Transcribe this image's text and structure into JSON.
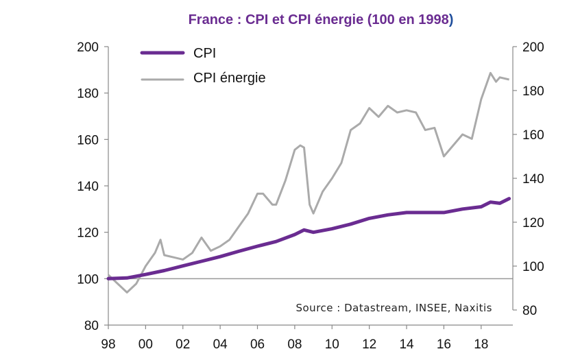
{
  "chart_data": {
    "type": "line",
    "title_main": "France : CPI et CPI énergie (100 en 1998",
    "title_paren": ")",
    "source": "Source : Datastream, INSEE, Naxitis",
    "x_tick_labels": [
      "98",
      "00",
      "02",
      "04",
      "06",
      "08",
      "10",
      "12",
      "14",
      "16",
      "18"
    ],
    "x_tick_years": [
      1998,
      2000,
      2002,
      2004,
      2006,
      2008,
      2010,
      2012,
      2014,
      2016,
      2018
    ],
    "xlim": [
      1998,
      2019.7
    ],
    "left_axis": {
      "ylim": [
        80,
        200
      ],
      "ticks": [
        80,
        100,
        120,
        140,
        160,
        180,
        200
      ]
    },
    "right_axis": {
      "ylim": [
        80,
        200
      ],
      "ticks": [
        80,
        100,
        120,
        140,
        160,
        180,
        200
      ]
    },
    "reference_line": 100,
    "legend_position": "top-left",
    "colors": {
      "title": "#6a2c91",
      "cpi": "#6a2c91",
      "energy": "#aaaaaa",
      "axis": "#888888",
      "ref_line": "#999999"
    },
    "series": [
      {
        "name": "CPI",
        "axis": "left",
        "x": [
          1998.0,
          1999.0,
          2000.0,
          2001.0,
          2002.0,
          2003.0,
          2004.0,
          2005.0,
          2006.0,
          2007.0,
          2008.0,
          2008.5,
          2009.0,
          2010.0,
          2011.0,
          2012.0,
          2013.0,
          2014.0,
          2015.0,
          2016.0,
          2017.0,
          2018.0,
          2018.5,
          2019.0,
          2019.5
        ],
        "y": [
          100,
          100.3,
          101.8,
          103.5,
          105.5,
          107.5,
          109.5,
          111.8,
          114,
          116,
          119,
          121,
          120,
          121.5,
          123.5,
          126,
          127.5,
          128.5,
          128.5,
          128.5,
          130,
          131,
          133,
          132.5,
          134.5
        ]
      },
      {
        "name": "CPI énergie",
        "axis": "right",
        "x": [
          1998.0,
          1998.5,
          1999.0,
          1999.5,
          2000.0,
          2000.5,
          2000.8,
          2001.0,
          2001.5,
          2002.0,
          2002.5,
          2003.0,
          2003.5,
          2004.0,
          2004.5,
          2005.0,
          2005.5,
          2006.0,
          2006.3,
          2006.8,
          2007.0,
          2007.5,
          2008.0,
          2008.3,
          2008.5,
          2008.8,
          2009.0,
          2009.5,
          2010.0,
          2010.5,
          2011.0,
          2011.5,
          2012.0,
          2012.5,
          2013.0,
          2013.5,
          2014.0,
          2014.5,
          2015.0,
          2015.5,
          2016.0,
          2016.5,
          2017.0,
          2017.5,
          2018.0,
          2018.5,
          2018.8,
          2019.0,
          2019.5
        ],
        "y": [
          96,
          92,
          88,
          92,
          100,
          106,
          112,
          105,
          104,
          103,
          106,
          113,
          107,
          109,
          112,
          118,
          124,
          133,
          133,
          128,
          128,
          139,
          153,
          155,
          154,
          128,
          124,
          134,
          140,
          147,
          162,
          165,
          172,
          168,
          173,
          170,
          171,
          170,
          162,
          163,
          150,
          155,
          160,
          158,
          176,
          188,
          184,
          186,
          185
        ]
      }
    ]
  }
}
